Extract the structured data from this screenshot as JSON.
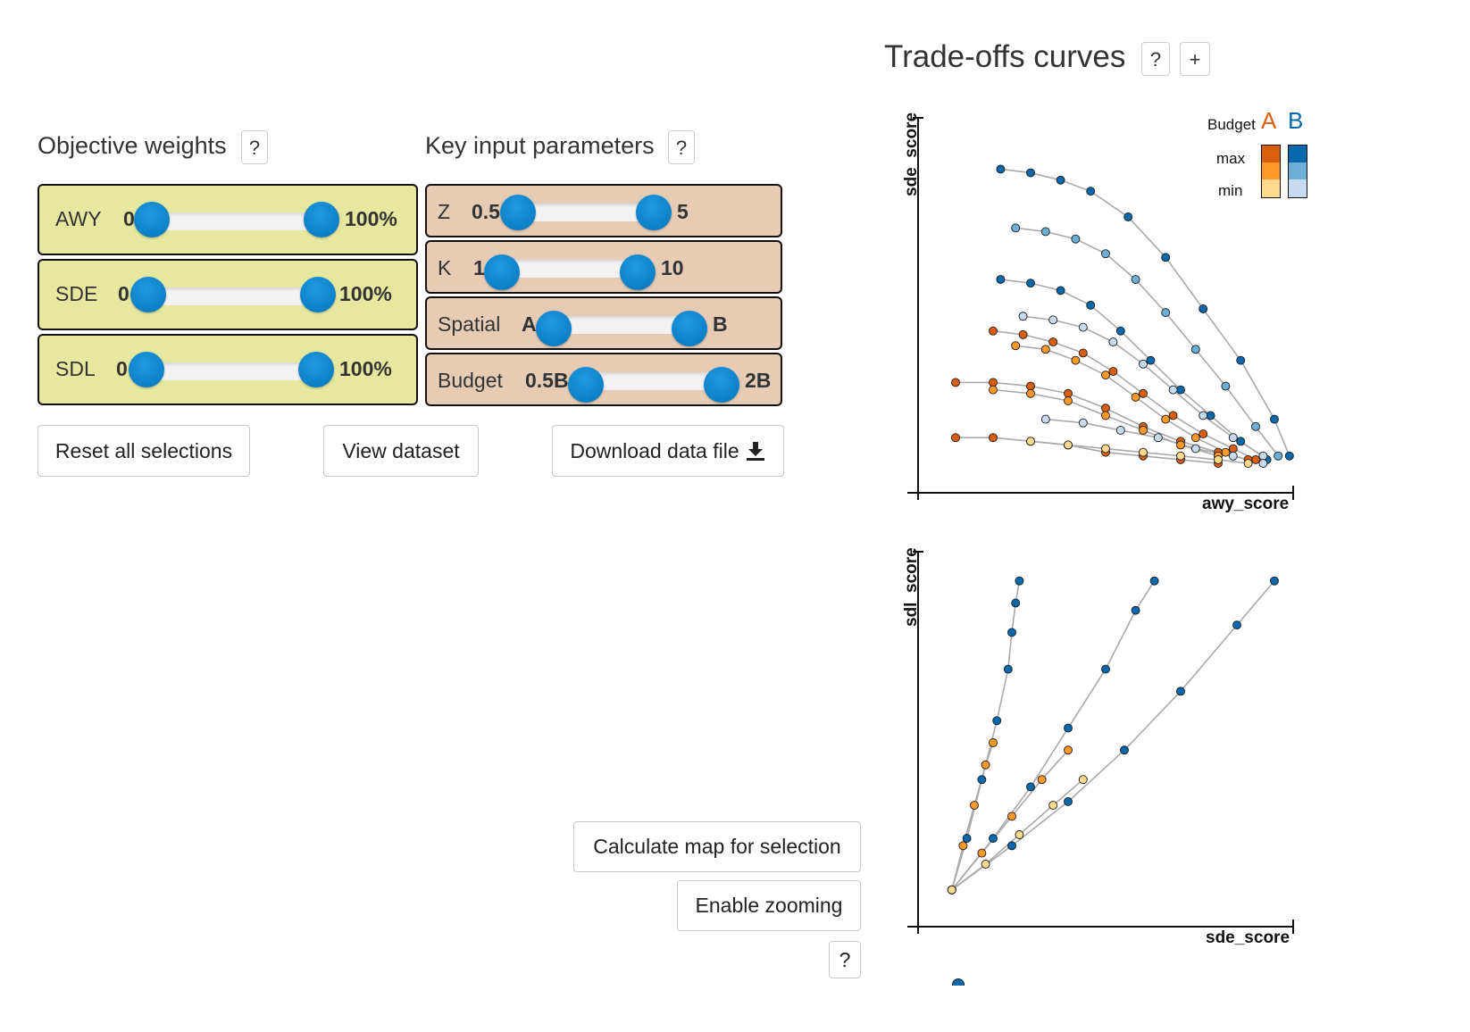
{
  "objective_weights": {
    "title": "Objective weights",
    "help": "?",
    "sliders": [
      {
        "label": "AWY",
        "min": "0",
        "max": "100%"
      },
      {
        "label": "SDE",
        "min": "0",
        "max": "100%"
      },
      {
        "label": "SDL",
        "min": "0",
        "max": "100%"
      }
    ]
  },
  "key_inputs": {
    "title": "Key input parameters",
    "help": "?",
    "sliders": [
      {
        "label": "Z",
        "min": "0.5",
        "max": "5"
      },
      {
        "label": "K",
        "min": "1",
        "max": "10"
      },
      {
        "label": "Spatial",
        "min": "A",
        "max": "B"
      },
      {
        "label": "Budget",
        "min": "0.5B",
        "max": "2B"
      }
    ]
  },
  "buttons": {
    "reset": "Reset all selections",
    "view": "View dataset",
    "download": "Download data file",
    "calculate": "Calculate map for selection",
    "zoom": "Enable zooming",
    "help": "?"
  },
  "tradeoffs": {
    "title": "Trade-offs curves",
    "help": "?",
    "expand": "+"
  },
  "legend": {
    "budget": "Budget",
    "a": "A",
    "b": "B",
    "max": "max",
    "min": "min"
  },
  "colors": {
    "a_scale": [
      "#d95f0e",
      "#fe9929",
      "#fed98e"
    ],
    "b_scale": [
      "#0868ac",
      "#6baed6",
      "#c6dbef"
    ],
    "weight_panel": "#e6e8a0",
    "param_panel": "#e6ccb5",
    "knob": "#0c7fc7"
  },
  "chart_data": [
    {
      "type": "scatter",
      "title": "",
      "xlabel": "awy_score",
      "ylabel": "sde_score",
      "note": "Trade-off curves: each curve is a fixed configuration; point color encodes spatial option (A orange / B blue) and budget (max dark to min light). Values approximate, normalized 0–1.",
      "curves": [
        {
          "spatial": "B",
          "budget": "max",
          "x": [
            0.22,
            0.3,
            0.38,
            0.46,
            0.56,
            0.66,
            0.76,
            0.86,
            0.95,
            0.99
          ],
          "y": [
            0.88,
            0.87,
            0.85,
            0.82,
            0.75,
            0.64,
            0.5,
            0.36,
            0.2,
            0.1
          ]
        },
        {
          "spatial": "B",
          "budget": "mid",
          "x": [
            0.26,
            0.34,
            0.42,
            0.5,
            0.58,
            0.66,
            0.74,
            0.82,
            0.9,
            0.96
          ],
          "y": [
            0.72,
            0.71,
            0.69,
            0.65,
            0.58,
            0.49,
            0.39,
            0.29,
            0.18,
            0.1
          ]
        },
        {
          "spatial": "B",
          "budget": "max",
          "x": [
            0.22,
            0.3,
            0.38,
            0.46,
            0.54,
            0.62,
            0.7,
            0.78,
            0.86,
            0.93
          ],
          "y": [
            0.58,
            0.57,
            0.55,
            0.51,
            0.44,
            0.36,
            0.28,
            0.21,
            0.14,
            0.09
          ]
        },
        {
          "spatial": "B",
          "budget": "min",
          "x": [
            0.28,
            0.36,
            0.44,
            0.52,
            0.6,
            0.68,
            0.76,
            0.84,
            0.92
          ],
          "y": [
            0.48,
            0.47,
            0.45,
            0.41,
            0.35,
            0.28,
            0.21,
            0.15,
            0.1
          ]
        },
        {
          "spatial": "A",
          "budget": "max",
          "x": [
            0.2,
            0.28,
            0.36,
            0.44,
            0.52,
            0.6,
            0.68,
            0.76,
            0.84,
            0.9
          ],
          "y": [
            0.44,
            0.43,
            0.41,
            0.38,
            0.33,
            0.27,
            0.21,
            0.16,
            0.12,
            0.09
          ]
        },
        {
          "spatial": "A",
          "budget": "mid",
          "x": [
            0.26,
            0.34,
            0.42,
            0.5,
            0.58,
            0.66,
            0.74,
            0.82
          ],
          "y": [
            0.4,
            0.39,
            0.36,
            0.32,
            0.26,
            0.2,
            0.15,
            0.11
          ]
        },
        {
          "spatial": "A",
          "budget": "max",
          "x": [
            0.1,
            0.2,
            0.3,
            0.4,
            0.5,
            0.6,
            0.7,
            0.8,
            0.88
          ],
          "y": [
            0.3,
            0.3,
            0.29,
            0.27,
            0.23,
            0.18,
            0.14,
            0.11,
            0.09
          ]
        },
        {
          "spatial": "A",
          "budget": "mid",
          "x": [
            0.2,
            0.3,
            0.4,
            0.5,
            0.6,
            0.7,
            0.8
          ],
          "y": [
            0.28,
            0.27,
            0.25,
            0.21,
            0.17,
            0.13,
            0.1
          ]
        },
        {
          "spatial": "A",
          "budget": "max",
          "x": [
            0.1,
            0.2,
            0.3,
            0.4,
            0.5,
            0.6,
            0.7,
            0.8
          ],
          "y": [
            0.15,
            0.15,
            0.14,
            0.13,
            0.11,
            0.1,
            0.09,
            0.08
          ]
        },
        {
          "spatial": "A",
          "budget": "min",
          "x": [
            0.3,
            0.4,
            0.5,
            0.6,
            0.7,
            0.8,
            0.88
          ],
          "y": [
            0.14,
            0.13,
            0.12,
            0.11,
            0.1,
            0.09,
            0.08
          ]
        },
        {
          "spatial": "B",
          "budget": "min",
          "x": [
            0.34,
            0.44,
            0.54,
            0.64,
            0.74,
            0.84,
            0.92
          ],
          "y": [
            0.2,
            0.19,
            0.17,
            0.15,
            0.12,
            0.1,
            0.08
          ]
        }
      ]
    },
    {
      "type": "scatter",
      "title": "",
      "xlabel": "sde_score",
      "ylabel": "sdl_score",
      "note": "Three linear bundles of points from origin. Values approximate, normalized 0–1.",
      "curves": [
        {
          "spatial": "B",
          "budget": "max",
          "x": [
            0.09,
            0.13,
            0.17,
            0.21,
            0.24,
            0.25,
            0.26,
            0.27
          ],
          "y": [
            0.1,
            0.24,
            0.4,
            0.56,
            0.7,
            0.8,
            0.88,
            0.94
          ]
        },
        {
          "spatial": "A",
          "budget": "mid",
          "x": [
            0.09,
            0.12,
            0.15,
            0.18,
            0.2
          ],
          "y": [
            0.1,
            0.22,
            0.33,
            0.44,
            0.5
          ]
        },
        {
          "spatial": "B",
          "budget": "max",
          "x": [
            0.09,
            0.2,
            0.3,
            0.4,
            0.5,
            0.58,
            0.63
          ],
          "y": [
            0.1,
            0.24,
            0.38,
            0.54,
            0.7,
            0.86,
            0.94
          ]
        },
        {
          "spatial": "A",
          "budget": "mid",
          "x": [
            0.09,
            0.17,
            0.25,
            0.33,
            0.4
          ],
          "y": [
            0.1,
            0.2,
            0.3,
            0.4,
            0.48
          ]
        },
        {
          "spatial": "B",
          "budget": "max",
          "x": [
            0.09,
            0.25,
            0.4,
            0.55,
            0.7,
            0.85,
            0.95
          ],
          "y": [
            0.1,
            0.22,
            0.34,
            0.48,
            0.64,
            0.82,
            0.94
          ]
        },
        {
          "spatial": "A",
          "budget": "min",
          "x": [
            0.09,
            0.18,
            0.27,
            0.36,
            0.44
          ],
          "y": [
            0.1,
            0.17,
            0.25,
            0.33,
            0.4
          ]
        }
      ]
    }
  ]
}
